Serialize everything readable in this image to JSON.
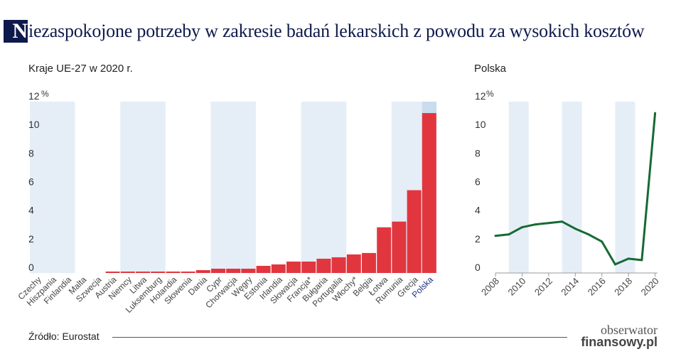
{
  "header": {
    "title_initial": "N",
    "title_rest": "iezaspokojone potrzeby w zakresie badań lekarskich z powodu za wysokich kosztów"
  },
  "footer": {
    "source": "Źródło: Eurostat",
    "logo_line1": "obserwator",
    "logo_line2": "finansowy.pl"
  },
  "colors": {
    "bar": "#e2363f",
    "line": "#166a34",
    "band": "#e5eef7",
    "title_bg": "#0e1a4c",
    "highlight_label": "#1c2d8a"
  },
  "chart_data": [
    {
      "type": "bar",
      "title": "Kraje UE-27 w 2020 r.",
      "unit": "%",
      "ylim": [
        0,
        12
      ],
      "yticks": [
        "0",
        "2",
        "4",
        "6",
        "8",
        "10",
        "12"
      ],
      "categories": [
        "Czechy",
        "Hiszpania",
        "Finlandia",
        "Malta",
        "Szwecja",
        "Austria",
        "Niemcy",
        "Litwa",
        "Luksemburg",
        "Holandia",
        "Słowenia",
        "Dania",
        "Cypr",
        "Chorwacja",
        "Węgry",
        "Estonia",
        "Irlandia",
        "Słowacja",
        "Francja*",
        "Bułgaria",
        "Portugalia",
        "Włochy*",
        "Belgia",
        "Łotwa",
        "Rumunia",
        "Grecja",
        "Polska"
      ],
      "values": [
        0,
        0,
        0,
        0,
        0,
        0.1,
        0.1,
        0.1,
        0.1,
        0.1,
        0.1,
        0.2,
        0.3,
        0.3,
        0.3,
        0.5,
        0.6,
        0.8,
        0.8,
        1.0,
        1.1,
        1.3,
        1.4,
        3.2,
        3.6,
        5.8,
        11.2
      ],
      "highlight": "Polska",
      "grid": false
    },
    {
      "type": "line",
      "title": "Polska",
      "unit": "%",
      "ylim": [
        0,
        12
      ],
      "yticks": [
        "0",
        "2",
        "4",
        "6",
        "8",
        "10",
        "12"
      ],
      "xticks": [
        "2008",
        "2010",
        "2012",
        "2014",
        "2016",
        "2018",
        "2020"
      ],
      "x": [
        2008,
        2009,
        2010,
        2011,
        2012,
        2013,
        2014,
        2015,
        2016,
        2017,
        2018,
        2019,
        2020
      ],
      "values": [
        2.6,
        2.7,
        3.2,
        3.4,
        3.5,
        3.6,
        3.1,
        2.7,
        2.2,
        0.6,
        1.0,
        0.9,
        11.2
      ],
      "grid": false
    }
  ]
}
